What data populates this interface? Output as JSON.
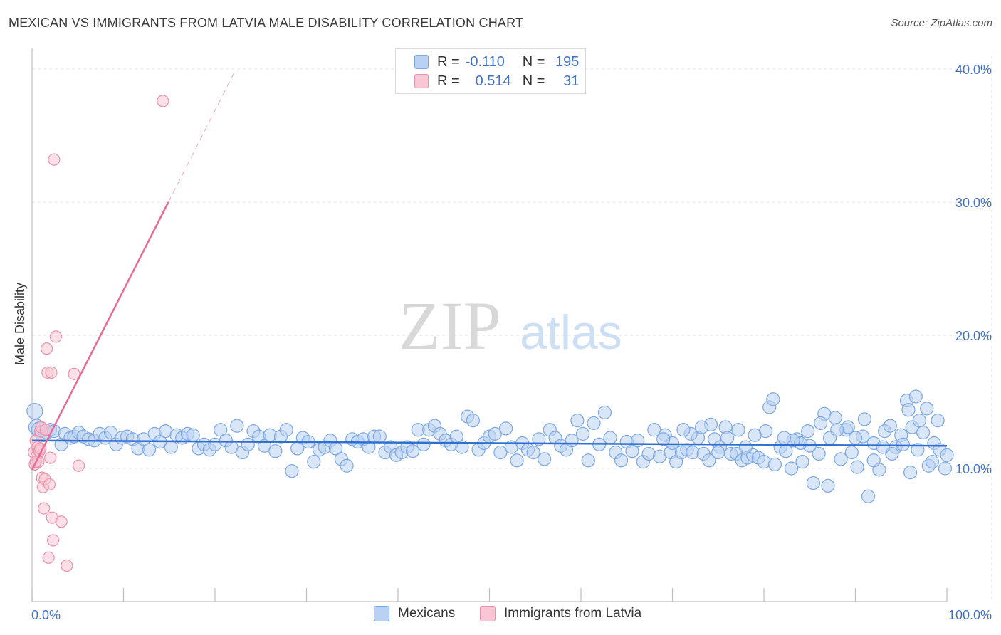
{
  "header": {
    "title": "MEXICAN VS IMMIGRANTS FROM LATVIA MALE DISABILITY CORRELATION CHART",
    "source": "Source: ZipAtlas.com"
  },
  "watermark": {
    "zip": "ZIP",
    "atlas": "atlas"
  },
  "colors": {
    "blue_fill": "#b9d1f3",
    "blue_stroke": "#7ba7e3",
    "blue_line": "#2f6fd0",
    "pink_fill": "#f8c6d4",
    "pink_stroke": "#ee8fab",
    "pink_line": "#e86a95",
    "tick_text": "#3f73c8",
    "grid": "#e3e3e3"
  },
  "legend_top": {
    "rows": [
      {
        "r_label": "R =",
        "r_value": "-0.110",
        "n_label": "N =",
        "n_value": "195"
      },
      {
        "r_label": "R =",
        "r_value": "0.514",
        "n_label": "N =",
        "n_value": "31"
      }
    ]
  },
  "legend_bottom": {
    "items": [
      "Mexicans",
      "Immigrants from Latvia"
    ]
  },
  "chart_data": {
    "type": "scatter",
    "title": "MEXICAN VS IMMIGRANTS FROM LATVIA MALE DISABILITY CORRELATION CHART",
    "xlabel": "",
    "ylabel": "Male Disability",
    "xlim": [
      0,
      100
    ],
    "ylim": [
      0,
      40
    ],
    "x_tick_labels": [
      "0.0%",
      "100.0%"
    ],
    "y_ticks": [
      10,
      20,
      30,
      40
    ],
    "y_tick_labels": [
      "10.0%",
      "20.0%",
      "30.0%",
      "40.0%"
    ],
    "grid": "horizontal dashed",
    "legend": "top-center and bottom",
    "series": [
      {
        "name": "Mexicans",
        "r": -0.11,
        "n": 195,
        "trend": {
          "x0": 0,
          "y0": 12.1,
          "x1": 100,
          "y1": 11.7
        },
        "points": [
          [
            0.3,
            14.3
          ],
          [
            0.5,
            13.1
          ],
          [
            0.8,
            12.9
          ],
          [
            1.2,
            12.6
          ],
          [
            1.6,
            12.7
          ],
          [
            2.0,
            12.9
          ],
          [
            2.4,
            12.8
          ],
          [
            3.2,
            11.8
          ],
          [
            3.6,
            12.6
          ],
          [
            4.2,
            12.3
          ],
          [
            4.6,
            12.4
          ],
          [
            5.1,
            12.7
          ],
          [
            5.6,
            12.4
          ],
          [
            6.2,
            12.2
          ],
          [
            6.8,
            12.1
          ],
          [
            7.4,
            12.6
          ],
          [
            8.0,
            12.3
          ],
          [
            8.6,
            12.7
          ],
          [
            9.2,
            11.8
          ],
          [
            9.8,
            12.3
          ],
          [
            10.4,
            12.4
          ],
          [
            11.0,
            12.2
          ],
          [
            11.6,
            11.5
          ],
          [
            12.2,
            12.2
          ],
          [
            12.8,
            11.4
          ],
          [
            13.4,
            12.6
          ],
          [
            14.0,
            12.0
          ],
          [
            14.6,
            12.8
          ],
          [
            15.2,
            11.6
          ],
          [
            15.8,
            12.5
          ],
          [
            16.4,
            12.3
          ],
          [
            17.0,
            12.6
          ],
          [
            17.6,
            12.5
          ],
          [
            18.2,
            11.5
          ],
          [
            18.8,
            11.8
          ],
          [
            19.4,
            11.4
          ],
          [
            20.0,
            11.8
          ],
          [
            20.6,
            12.9
          ],
          [
            21.2,
            12.1
          ],
          [
            21.8,
            11.6
          ],
          [
            22.4,
            13.2
          ],
          [
            23.0,
            11.2
          ],
          [
            23.6,
            11.8
          ],
          [
            24.2,
            12.8
          ],
          [
            24.8,
            12.4
          ],
          [
            25.4,
            11.7
          ],
          [
            26.0,
            12.5
          ],
          [
            26.6,
            11.3
          ],
          [
            27.2,
            12.4
          ],
          [
            27.8,
            12.9
          ],
          [
            28.4,
            9.8
          ],
          [
            29.0,
            11.5
          ],
          [
            29.6,
            12.3
          ],
          [
            30.2,
            12.0
          ],
          [
            30.8,
            10.5
          ],
          [
            31.4,
            11.4
          ],
          [
            32.0,
            11.6
          ],
          [
            32.6,
            12.1
          ],
          [
            33.2,
            11.5
          ],
          [
            33.8,
            10.7
          ],
          [
            34.4,
            10.2
          ],
          [
            35.0,
            12.2
          ],
          [
            35.6,
            12.0
          ],
          [
            36.2,
            12.2
          ],
          [
            36.8,
            11.6
          ],
          [
            37.4,
            12.4
          ],
          [
            38.0,
            12.4
          ],
          [
            38.6,
            11.2
          ],
          [
            39.2,
            11.6
          ],
          [
            39.8,
            11.0
          ],
          [
            40.4,
            11.2
          ],
          [
            41.0,
            11.6
          ],
          [
            41.6,
            11.3
          ],
          [
            42.2,
            12.9
          ],
          [
            42.8,
            11.8
          ],
          [
            43.4,
            12.9
          ],
          [
            44.0,
            13.2
          ],
          [
            44.6,
            12.6
          ],
          [
            45.2,
            12.1
          ],
          [
            45.8,
            11.8
          ],
          [
            46.4,
            12.4
          ],
          [
            47.0,
            11.6
          ],
          [
            47.6,
            13.9
          ],
          [
            48.2,
            13.6
          ],
          [
            48.8,
            11.4
          ],
          [
            49.4,
            11.9
          ],
          [
            50.0,
            12.4
          ],
          [
            50.6,
            12.6
          ],
          [
            51.2,
            11.2
          ],
          [
            51.8,
            13.0
          ],
          [
            52.4,
            11.6
          ],
          [
            53.0,
            10.6
          ],
          [
            53.6,
            11.9
          ],
          [
            54.2,
            11.4
          ],
          [
            54.8,
            11.2
          ],
          [
            55.4,
            12.2
          ],
          [
            56.0,
            10.7
          ],
          [
            56.6,
            12.9
          ],
          [
            57.2,
            12.3
          ],
          [
            57.8,
            11.7
          ],
          [
            58.4,
            11.4
          ],
          [
            59.0,
            12.1
          ],
          [
            59.6,
            13.6
          ],
          [
            60.2,
            12.6
          ],
          [
            60.8,
            10.6
          ],
          [
            61.4,
            13.4
          ],
          [
            62.0,
            11.8
          ],
          [
            62.6,
            14.2
          ],
          [
            63.2,
            12.3
          ],
          [
            63.8,
            11.2
          ],
          [
            64.4,
            10.6
          ],
          [
            65.0,
            12.0
          ],
          [
            65.6,
            11.3
          ],
          [
            66.2,
            12.1
          ],
          [
            66.8,
            10.5
          ],
          [
            67.4,
            11.1
          ],
          [
            68.0,
            12.9
          ],
          [
            68.6,
            10.9
          ],
          [
            69.2,
            12.5
          ],
          [
            69.8,
            11.2
          ],
          [
            70.4,
            10.5
          ],
          [
            71.0,
            11.2
          ],
          [
            71.6,
            11.4
          ],
          [
            72.2,
            11.2
          ],
          [
            72.8,
            12.3
          ],
          [
            73.4,
            11.1
          ],
          [
            74.0,
            10.6
          ],
          [
            74.6,
            12.2
          ],
          [
            75.2,
            11.6
          ],
          [
            75.8,
            13.1
          ],
          [
            76.4,
            11.1
          ],
          [
            77.0,
            11.1
          ],
          [
            77.6,
            10.6
          ],
          [
            78.2,
            10.8
          ],
          [
            78.8,
            11.0
          ],
          [
            79.4,
            10.8
          ],
          [
            80.0,
            10.5
          ],
          [
            80.6,
            14.6
          ],
          [
            81.2,
            10.3
          ],
          [
            81.8,
            11.6
          ],
          [
            82.4,
            11.3
          ],
          [
            83.0,
            10.0
          ],
          [
            83.6,
            12.2
          ],
          [
            84.2,
            10.5
          ],
          [
            84.8,
            12.8
          ],
          [
            85.4,
            8.9
          ],
          [
            86.0,
            11.1
          ],
          [
            86.6,
            14.1
          ],
          [
            87.2,
            12.3
          ],
          [
            87.8,
            13.8
          ],
          [
            88.4,
            10.7
          ],
          [
            89.0,
            12.9
          ],
          [
            89.6,
            11.2
          ],
          [
            90.2,
            10.1
          ],
          [
            90.8,
            12.4
          ],
          [
            91.4,
            7.9
          ],
          [
            92.0,
            11.9
          ],
          [
            92.6,
            9.9
          ],
          [
            93.2,
            12.8
          ],
          [
            93.8,
            13.2
          ],
          [
            94.4,
            11.6
          ],
          [
            95.0,
            12.5
          ],
          [
            95.6,
            15.1
          ],
          [
            96.2,
            13.1
          ],
          [
            96.8,
            11.4
          ],
          [
            97.4,
            12.7
          ],
          [
            98.0,
            10.2
          ],
          [
            98.6,
            11.9
          ],
          [
            99.2,
            11.4
          ],
          [
            99.8,
            10.0
          ],
          [
            98.4,
            10.5
          ],
          [
            97.0,
            13.6
          ],
          [
            96.0,
            9.7
          ],
          [
            95.2,
            11.8
          ],
          [
            94.0,
            11.1
          ],
          [
            93.0,
            11.6
          ],
          [
            92.0,
            10.6
          ],
          [
            91.0,
            13.7
          ],
          [
            90.0,
            12.3
          ],
          [
            89.2,
            13.1
          ],
          [
            88.0,
            12.9
          ],
          [
            87.0,
            8.7
          ],
          [
            86.2,
            13.4
          ],
          [
            85.0,
            11.7
          ],
          [
            84.0,
            11.9
          ],
          [
            83.2,
            12.1
          ],
          [
            82.2,
            12.3
          ],
          [
            81.0,
            15.2
          ],
          [
            80.2,
            12.8
          ],
          [
            79.0,
            12.5
          ],
          [
            78.0,
            11.6
          ],
          [
            77.2,
            12.9
          ],
          [
            76.0,
            12.3
          ],
          [
            75.0,
            11.2
          ],
          [
            74.2,
            13.3
          ],
          [
            73.2,
            13.1
          ],
          [
            72.0,
            12.6
          ],
          [
            71.2,
            12.9
          ],
          [
            70.0,
            11.9
          ],
          [
            69.0,
            12.2
          ],
          [
            100.0,
            11.0
          ],
          [
            99.0,
            13.6
          ],
          [
            97.8,
            14.5
          ],
          [
            96.6,
            15.4
          ],
          [
            95.8,
            14.4
          ]
        ]
      },
      {
        "name": "Immigrants from Latvia",
        "r": 0.514,
        "n": 31,
        "trend": {
          "x0": 0,
          "y0": 9.9,
          "x1": 14.9,
          "y1": 30.0
        },
        "trend_dashed": {
          "x0": 14.9,
          "y0": 30.0,
          "x1": 22.3,
          "y1": 40.0
        },
        "points": [
          [
            0.2,
            11.2
          ],
          [
            0.3,
            10.3
          ],
          [
            0.4,
            12.1
          ],
          [
            0.5,
            10.9
          ],
          [
            0.6,
            11.6
          ],
          [
            0.7,
            10.5
          ],
          [
            0.8,
            11.3
          ],
          [
            0.9,
            12.8
          ],
          [
            1.0,
            13.1
          ],
          [
            1.1,
            9.3
          ],
          [
            1.2,
            8.6
          ],
          [
            1.3,
            7.0
          ],
          [
            1.4,
            9.2
          ],
          [
            1.5,
            12.9
          ],
          [
            1.6,
            19.0
          ],
          [
            1.7,
            17.2
          ],
          [
            1.8,
            3.3
          ],
          [
            1.9,
            8.8
          ],
          [
            2.0,
            10.8
          ],
          [
            2.1,
            17.2
          ],
          [
            2.2,
            6.3
          ],
          [
            2.3,
            4.6
          ],
          [
            2.4,
            33.2
          ],
          [
            2.6,
            19.9
          ],
          [
            3.2,
            6.0
          ],
          [
            3.8,
            2.7
          ],
          [
            4.6,
            17.1
          ],
          [
            5.1,
            10.2
          ],
          [
            14.3,
            37.6
          ],
          [
            0.4,
            10.5
          ],
          [
            0.9,
            11.5
          ]
        ]
      }
    ]
  }
}
